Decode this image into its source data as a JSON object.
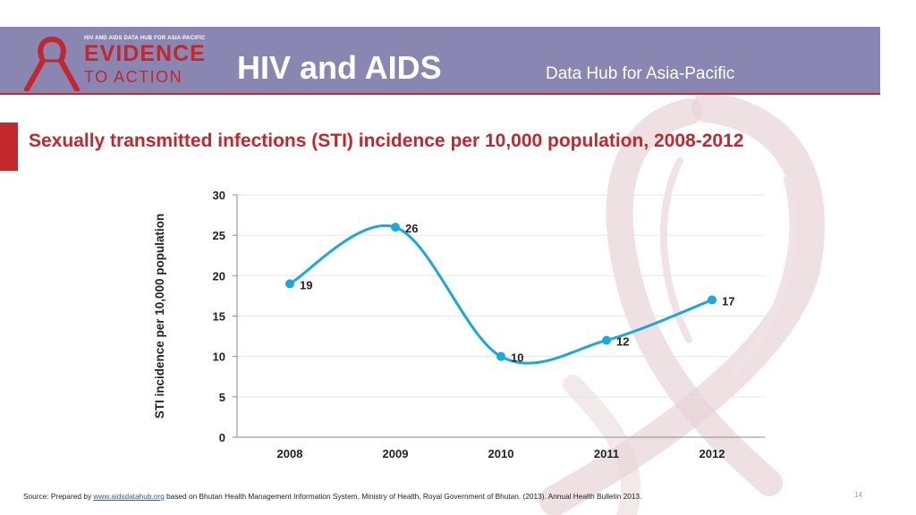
{
  "header": {
    "logo_small": "HIV AND AIDS DATA HUB FOR ASIA-PACIFIC",
    "logo_big": "EVIDENCE",
    "logo_sub": "TO ACTION",
    "title": "HIV and AIDS",
    "subtitle": "Data Hub for Asia-Pacific"
  },
  "slide": {
    "title": "Sexually transmitted infections (STI) incidence per 10,000 population, 2008-2012"
  },
  "colors": {
    "header_bg": "#8a86b2",
    "brand_red": "#c1272d",
    "series_line": "#1aa7dc"
  },
  "chart_data": {
    "type": "line",
    "title": "",
    "xlabel": "",
    "ylabel": "STI incidence per 10,000 population",
    "categories": [
      "2008",
      "2009",
      "2010",
      "2011",
      "2012"
    ],
    "series": [
      {
        "name": "STI incidence",
        "values": [
          19,
          26,
          10,
          12,
          17
        ]
      }
    ],
    "ylim": [
      0,
      30
    ],
    "yticks": [
      "0",
      "5",
      "10",
      "15",
      "20",
      "25",
      "30"
    ],
    "grid": true,
    "smooth": true,
    "data_labels": true
  },
  "footer": {
    "source_prefix": "Source: Prepared by ",
    "source_link": "www.aidsdatahub.org",
    "source_suffix": " based on Bhutan Health Management Information System, Ministry of Health, Royal Government of Bhutan. (2013). Annual Health Bulletin 2013.",
    "page_number": "14"
  }
}
